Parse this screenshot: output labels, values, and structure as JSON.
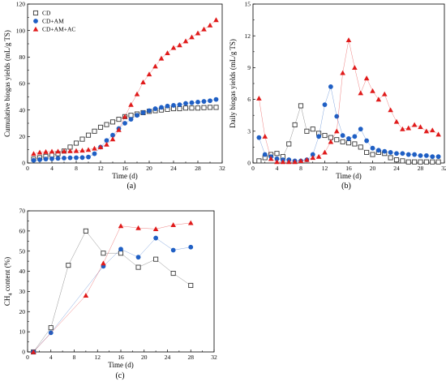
{
  "chart_data": [
    {
      "type": "scatter",
      "panel_label": "(a)",
      "xlabel": "Time (d)",
      "ylabel": "Cumulative biogas yields (mL/g TS)",
      "xlim": [
        0,
        32
      ],
      "ylim": [
        0,
        120
      ],
      "xticks": [
        0,
        4,
        8,
        12,
        16,
        20,
        24,
        28,
        32
      ],
      "yticks": [
        0,
        20,
        40,
        60,
        80,
        100,
        120
      ],
      "legend_position": "top-left",
      "series": [
        {
          "name": "CD",
          "marker": "open-square",
          "color": "#3a3a3a",
          "x": [
            1,
            2,
            3,
            4,
            5,
            6,
            7,
            8,
            9,
            10,
            11,
            12,
            13,
            14,
            15,
            16,
            17,
            18,
            19,
            20,
            21,
            22,
            23,
            24,
            25,
            26,
            27,
            28,
            29,
            30,
            31
          ],
          "y": [
            3,
            4,
            5,
            6,
            7,
            9,
            12,
            15,
            18,
            21,
            24,
            27,
            29,
            31,
            33,
            35,
            36,
            37,
            38,
            39,
            39.5,
            40,
            40.5,
            41,
            41,
            41.5,
            41.5,
            41.5,
            41.8,
            42,
            42
          ]
        },
        {
          "name": "CD+AM",
          "marker": "filled-circle",
          "color": "#1f5fc4",
          "x": [
            1,
            2,
            3,
            4,
            5,
            6,
            7,
            8,
            9,
            10,
            11,
            12,
            13,
            14,
            15,
            16,
            17,
            18,
            19,
            20,
            21,
            22,
            23,
            24,
            25,
            26,
            27,
            28,
            29,
            30,
            31
          ],
          "y": [
            2,
            2.5,
            3,
            3.2,
            3.5,
            3.7,
            3.9,
            4,
            4.1,
            4.5,
            7,
            12,
            17,
            21,
            26,
            30,
            33,
            36,
            38,
            39.5,
            41,
            42,
            43,
            43.5,
            44,
            45,
            45.5,
            46,
            46.5,
            47,
            48
          ]
        },
        {
          "name": "CD+AM+AC",
          "marker": "filled-triangle",
          "color": "#e01b1b",
          "x": [
            1,
            2,
            3,
            4,
            5,
            6,
            7,
            8,
            9,
            10,
            11,
            12,
            13,
            14,
            15,
            16,
            17,
            18,
            19,
            20,
            21,
            22,
            23,
            24,
            25,
            26,
            27,
            28,
            29,
            30,
            31
          ],
          "y": [
            7,
            8,
            8.5,
            8.7,
            8.8,
            8.9,
            9,
            9.2,
            9.5,
            10,
            11,
            12,
            14,
            18,
            25,
            35,
            44,
            52,
            61,
            67,
            73,
            79,
            83,
            87,
            89,
            92,
            95,
            98,
            101,
            104,
            108
          ]
        }
      ]
    },
    {
      "type": "line",
      "panel_label": "(b)",
      "xlabel": "Time (d)",
      "ylabel": "Daily biogas yields (mL/g TS)",
      "xlim": [
        0,
        32
      ],
      "ylim": [
        0,
        15
      ],
      "xticks": [
        0,
        4,
        8,
        12,
        16,
        20,
        24,
        28,
        32
      ],
      "yticks": [
        0,
        3,
        6,
        9,
        12,
        15
      ],
      "series": [
        {
          "name": "CD",
          "marker": "open-square",
          "color": "#3a3a3a",
          "x": [
            1,
            2,
            3,
            4,
            5,
            6,
            7,
            8,
            9,
            10,
            11,
            12,
            13,
            14,
            15,
            16,
            17,
            18,
            19,
            20,
            21,
            22,
            23,
            24,
            25,
            26,
            27,
            28,
            29,
            30,
            31
          ],
          "y": [
            0.2,
            0.5,
            0.8,
            0.9,
            0.6,
            1.8,
            3.6,
            5.4,
            3.0,
            3.2,
            2.8,
            2.6,
            2.4,
            2.2,
            2.0,
            1.9,
            1.8,
            1.5,
            1.0,
            0.8,
            1.0,
            0.9,
            0.5,
            0.3,
            0.2,
            0.1,
            0.1,
            0.1,
            0.1,
            0.1,
            0.1
          ]
        },
        {
          "name": "CD+AM",
          "marker": "filled-circle",
          "color": "#1f5fc4",
          "x": [
            1,
            2,
            3,
            4,
            5,
            6,
            7,
            8,
            9,
            10,
            11,
            12,
            13,
            14,
            15,
            16,
            17,
            18,
            19,
            20,
            21,
            22,
            23,
            24,
            25,
            26,
            27,
            28,
            29,
            30,
            31
          ],
          "y": [
            2.4,
            0.8,
            0.6,
            0.4,
            0.3,
            0.3,
            0.2,
            0.2,
            0.3,
            0.8,
            2.5,
            5.5,
            7.2,
            4.4,
            2.6,
            2.3,
            2.5,
            3.2,
            2.1,
            1.4,
            1.2,
            1.1,
            1.0,
            0.9,
            0.9,
            0.8,
            0.8,
            0.7,
            0.7,
            0.6,
            0.6
          ]
        },
        {
          "name": "CD+AM+AC",
          "marker": "filled-triangle",
          "color": "#e01b1b",
          "x": [
            1,
            2,
            3,
            4,
            5,
            6,
            7,
            8,
            9,
            10,
            11,
            12,
            13,
            14,
            15,
            16,
            17,
            18,
            19,
            20,
            21,
            22,
            23,
            24,
            25,
            26,
            27,
            28,
            29,
            30,
            31
          ],
          "y": [
            6.1,
            2.5,
            0.4,
            0.1,
            0.1,
            0.1,
            0.1,
            0.2,
            0.3,
            0.5,
            0.6,
            1.0,
            2.0,
            3.0,
            8.5,
            11.6,
            9.0,
            6.6,
            8.0,
            6.8,
            6.0,
            6.5,
            5.0,
            3.9,
            3.2,
            3.3,
            3.6,
            3.4,
            3.0,
            3.1,
            2.7
          ]
        }
      ]
    },
    {
      "type": "line",
      "panel_label": "(c)",
      "xlabel": "Time (d)",
      "ylabel": "CH4 content (%)",
      "ylabel_main": "CH",
      "ylabel_sub": "4",
      "ylabel_tail": " content (%)",
      "xlim": [
        0,
        32
      ],
      "ylim": [
        0,
        70
      ],
      "xticks": [
        0,
        4,
        8,
        12,
        16,
        20,
        24,
        28,
        32
      ],
      "yticks": [
        0,
        10,
        20,
        30,
        40,
        50,
        60,
        70
      ],
      "series": [
        {
          "name": "CD",
          "marker": "open-square",
          "color": "#3a3a3a",
          "x": [
            1,
            4,
            7,
            10,
            13,
            16,
            19,
            22,
            25,
            28
          ],
          "y": [
            0,
            12,
            43,
            60,
            49,
            49,
            42,
            46,
            39,
            33
          ]
        },
        {
          "name": "CD+AM",
          "marker": "filled-circle",
          "color": "#1f5fc4",
          "x": [
            1,
            4,
            13,
            16,
            19,
            22,
            25,
            28
          ],
          "y": [
            0,
            9.5,
            42.5,
            51,
            47,
            56.5,
            50.5,
            52
          ]
        },
        {
          "name": "CD+AM+AC",
          "marker": "filled-triangle",
          "color": "#e01b1b",
          "x": [
            1,
            10,
            13,
            16,
            19,
            22,
            25,
            28
          ],
          "y": [
            0,
            28,
            44,
            62.5,
            61.5,
            61,
            63,
            64
          ]
        }
      ]
    }
  ]
}
